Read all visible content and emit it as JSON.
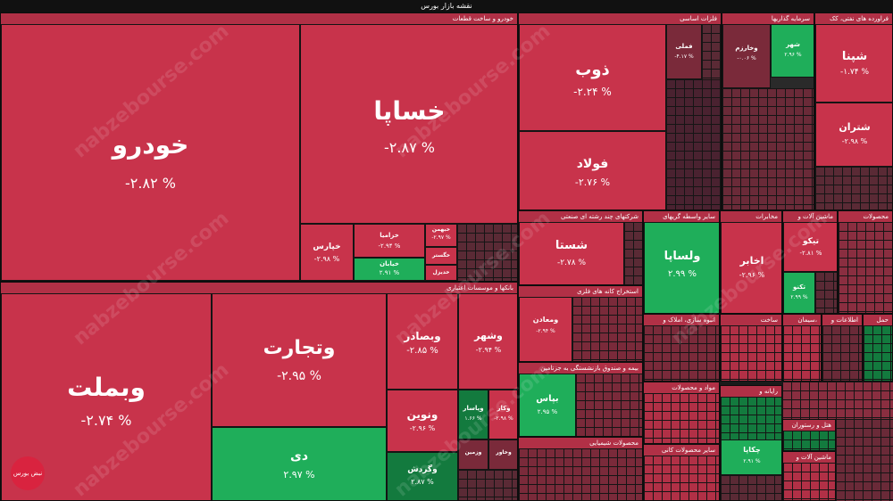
{
  "page": {
    "title": "نقشه بازار بورس"
  },
  "colors": {
    "deep_red": "#c8334b",
    "red": "#d93a50",
    "dark_red": "#7a2a3a",
    "green": "#1fae5a",
    "dark_green": "#137a3e"
  },
  "sectors": {
    "auto": "خودرو و ساخت قطعات",
    "banks": "بانکها و موسسات اعتباری",
    "metals": "فلزات اساسی",
    "investment": "سرمایه گذاریها",
    "petroleum": "فراورده های نفتی، کک",
    "multi": "شرکتهای چند رشته ای صنعتی",
    "telecom": "سایر واسطه گریهای",
    "extraction": "استخراج کانه های فلزی",
    "mass_housing": "انبوه سازی، املاک و",
    "funds": "بیمه و صندوق بازنشستگی به جزتامین",
    "materials": "مواد و محصولات",
    "chemical": "محصولات شیمیایی",
    "nonmetal": "سایر محصولات کانی",
    "comms": "مخابرات",
    "machinery": "ماشین آلات و",
    "products": "محصولات",
    "build": "ساخت",
    "cement": "سیمان،",
    "info": "اطلاعات و",
    "transport": "حمل",
    "computer": "رایانه و",
    "hotel": "هتل و رستوران",
    "machinery2": "ماشین آلات و"
  },
  "tiles": {
    "khodro": {
      "name": "خودرو",
      "pct": "-۲.۸۲ %"
    },
    "khsapa": {
      "name": "خساپا",
      "pct": "-۲.۸۷ %"
    },
    "khiapars": {
      "name": "خپارس",
      "pct": "-۲.۹۸ %"
    },
    "khgostar": {
      "name": "خگستر"
    },
    "khazamia": {
      "name": "خزامیا",
      "pct": "-۲.۹۴ %"
    },
    "khbahman": {
      "name": "خبهمن",
      "pct": "-۲.۹۷ %"
    },
    "khtiban": {
      "name": "خیابان",
      "pct": "۲.۹۱ %"
    },
    "khdizel": {
      "name": "خدیزل"
    },
    "vbmlt": {
      "name": "وبملت",
      "pct": "-۲.۷۴ %"
    },
    "vtejarat": {
      "name": "وتجارت",
      "pct": "-۲.۹۵ %"
    },
    "di": {
      "name": "دی",
      "pct": "۲.۹۷ %"
    },
    "vbsadr": {
      "name": "وبصادر",
      "pct": "-۲.۸۵ %"
    },
    "vshahr": {
      "name": "وشهر",
      "pct": "-۲.۹۴ %"
    },
    "vnovin": {
      "name": "ونوین",
      "pct": "-۲.۹۶ %"
    },
    "vgardesh": {
      "name": "وگردش",
      "pct": "۲.۸۷ %"
    },
    "vpasar": {
      "name": "وپاسار",
      "pct": "۱.۶۶ %"
    },
    "vkar": {
      "name": "وکار",
      "pct": "-۲.۹۸ %"
    },
    "vkhavar": {
      "name": "وخاور"
    },
    "vzmin": {
      "name": "وزمین"
    },
    "zob": {
      "name": "ذوب",
      "pct": "-۲.۲۴ %"
    },
    "foolad": {
      "name": "فولاد",
      "pct": "-۲.۷۶ %"
    },
    "fmali": {
      "name": "فملی",
      "pct": "-۴.۱۷ %"
    },
    "shabandar": {
      "name": "شپنا",
      "pct": "-۱.۷۴ %"
    },
    "shetran": {
      "name": "شتران",
      "pct": "-۲.۹۸ %"
    },
    "shasta": {
      "name": "شستا",
      "pct": "-۲.۷۸ %"
    },
    "vlsapa": {
      "name": "ولساپا",
      "pct": "۲.۹۹ %"
    },
    "akhaber": {
      "name": "اخابر",
      "pct": "-۲.۹۶ %"
    },
    "tipko": {
      "name": "تیکو",
      "pct": "-۲.۸۱ %"
    },
    "tknu": {
      "name": "تکنو",
      "pct": "۲.۹۹ %"
    },
    "bepas": {
      "name": "بپاس",
      "pct": "۲.۹۵ %"
    },
    "shahr": {
      "name": "شهر",
      "pct": "۲.۹۶ %"
    },
    "vkharazm": {
      "name": "وخارزم",
      "pct": "-۰.۰۶ %"
    },
    "vmlt": {
      "name": "ومعادن",
      "pct": "-۲.۹۴ %"
    },
    "chkapa": {
      "name": "چکاپا",
      "pct": "۲.۹۱ %"
    }
  },
  "watermark": "nabzebourse.com",
  "logo_text": "نبض بورس"
}
